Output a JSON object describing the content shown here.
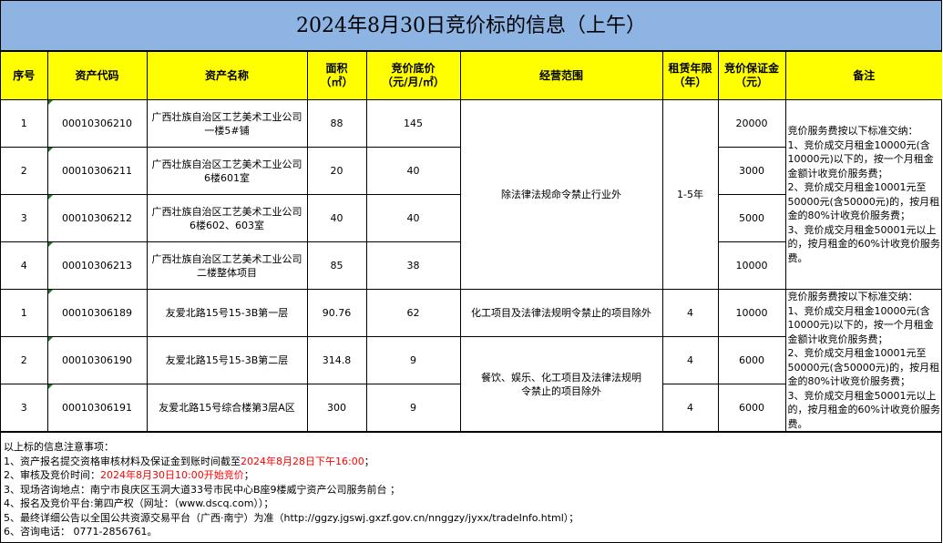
{
  "title": "2024年8月30日竞价标的信息（上午）",
  "headers": {
    "no": "序号",
    "code": "资产代码",
    "name": "资产名称",
    "area": "面积\n（㎡）",
    "price": "竞价底价\n（元/月/㎡）",
    "scope": "经营范围",
    "lease": "租赁年限\n（年）",
    "deposit": "竞价保证金\n（元）",
    "remark": "备注"
  },
  "rows": [
    {
      "no": "1",
      "code": "00010306210",
      "name": "广西壮族自治区工艺美术工业公司一楼5#铺",
      "area": "88",
      "price": "145",
      "deposit": "20000"
    },
    {
      "no": "2",
      "code": "00010306211",
      "name": "广西壮族自治区工艺美术工业公司6楼601室",
      "area": "20",
      "price": "40",
      "deposit": "3000"
    },
    {
      "no": "3",
      "code": "00010306212",
      "name": "广西壮族自治区工艺美术工业公司6楼602、603室",
      "area": "40",
      "price": "40",
      "deposit": "5000"
    },
    {
      "no": "4",
      "code": "00010306213",
      "name": "广西壮族自治区工艺美术工业公司二楼整体项目",
      "area": "85",
      "price": "38",
      "deposit": "10000"
    },
    {
      "no": "1",
      "code": "00010306189",
      "name": "友爱北路15号15-3B第一层",
      "area": "90.76",
      "price": "62",
      "lease": "4",
      "deposit": "10000"
    },
    {
      "no": "2",
      "code": "00010306190",
      "name": "友爱北路15号15-3B第二层",
      "area": "314.8",
      "price": "9",
      "lease": "4",
      "deposit": "6000"
    },
    {
      "no": "3",
      "code": "00010306191",
      "name": "友爱北路15号综合楼第3层A区",
      "area": "300",
      "price": "9",
      "lease": "4",
      "deposit": "6000"
    }
  ],
  "merged": {
    "scope_group1": "除法律法规命令禁止行业外",
    "lease_group1": "1-5年",
    "scope_row5": "化工项目及法律法规明令禁止的项目除外",
    "scope_rows6_7": "餐饮、娱乐、化工项目及法律法规明令禁止的项目除外",
    "remark": "竞价服务费按以下标准交纳：\n1、竞价成交月租金10000元(含10000元)以下的，按一个月租金金额计收竞价服务费；\n2、竞价成交月租金10001元至50000元(含50000元)的，按月租金的80%计收竞价服务费；\n3、竞价成交月租金50001元以上的，按月租金的60%计收竞价服务费。"
  },
  "notes": {
    "heading": "以上标的信息注意事项：",
    "n1_prefix": "1、资产报名提交资格审核材料及保证金到账时间截至",
    "n1_red": "2024年8月28日下午16:00",
    "n1_suffix": "；",
    "n2_prefix": "2、审核及竞价时间：",
    "n2_red": "2024年8月30日10:00开始竞价",
    "n2_suffix": "；",
    "n3": "3、现场咨询地点：南宁市良庆区玉洞大道33号市民中心B座9楼威宁资产公司服务前台 ；",
    "n4": "4、报名及竞价平台:第四产权（网址：（www.dscq.com））；",
    "n5": "5、最终详细公告以全国公共资源交易平台（广西·南宁）为准（http://ggzy.jgswj.gxzf.gov.cn/nnggzy/jyxx/tradeInfo.html）；",
    "n6": "6、咨询电话： 0771-2856761。"
  },
  "colors": {
    "title_bg": "#8db4e2",
    "header_bg": "#ffff00",
    "highlight": "#ff0000"
  }
}
